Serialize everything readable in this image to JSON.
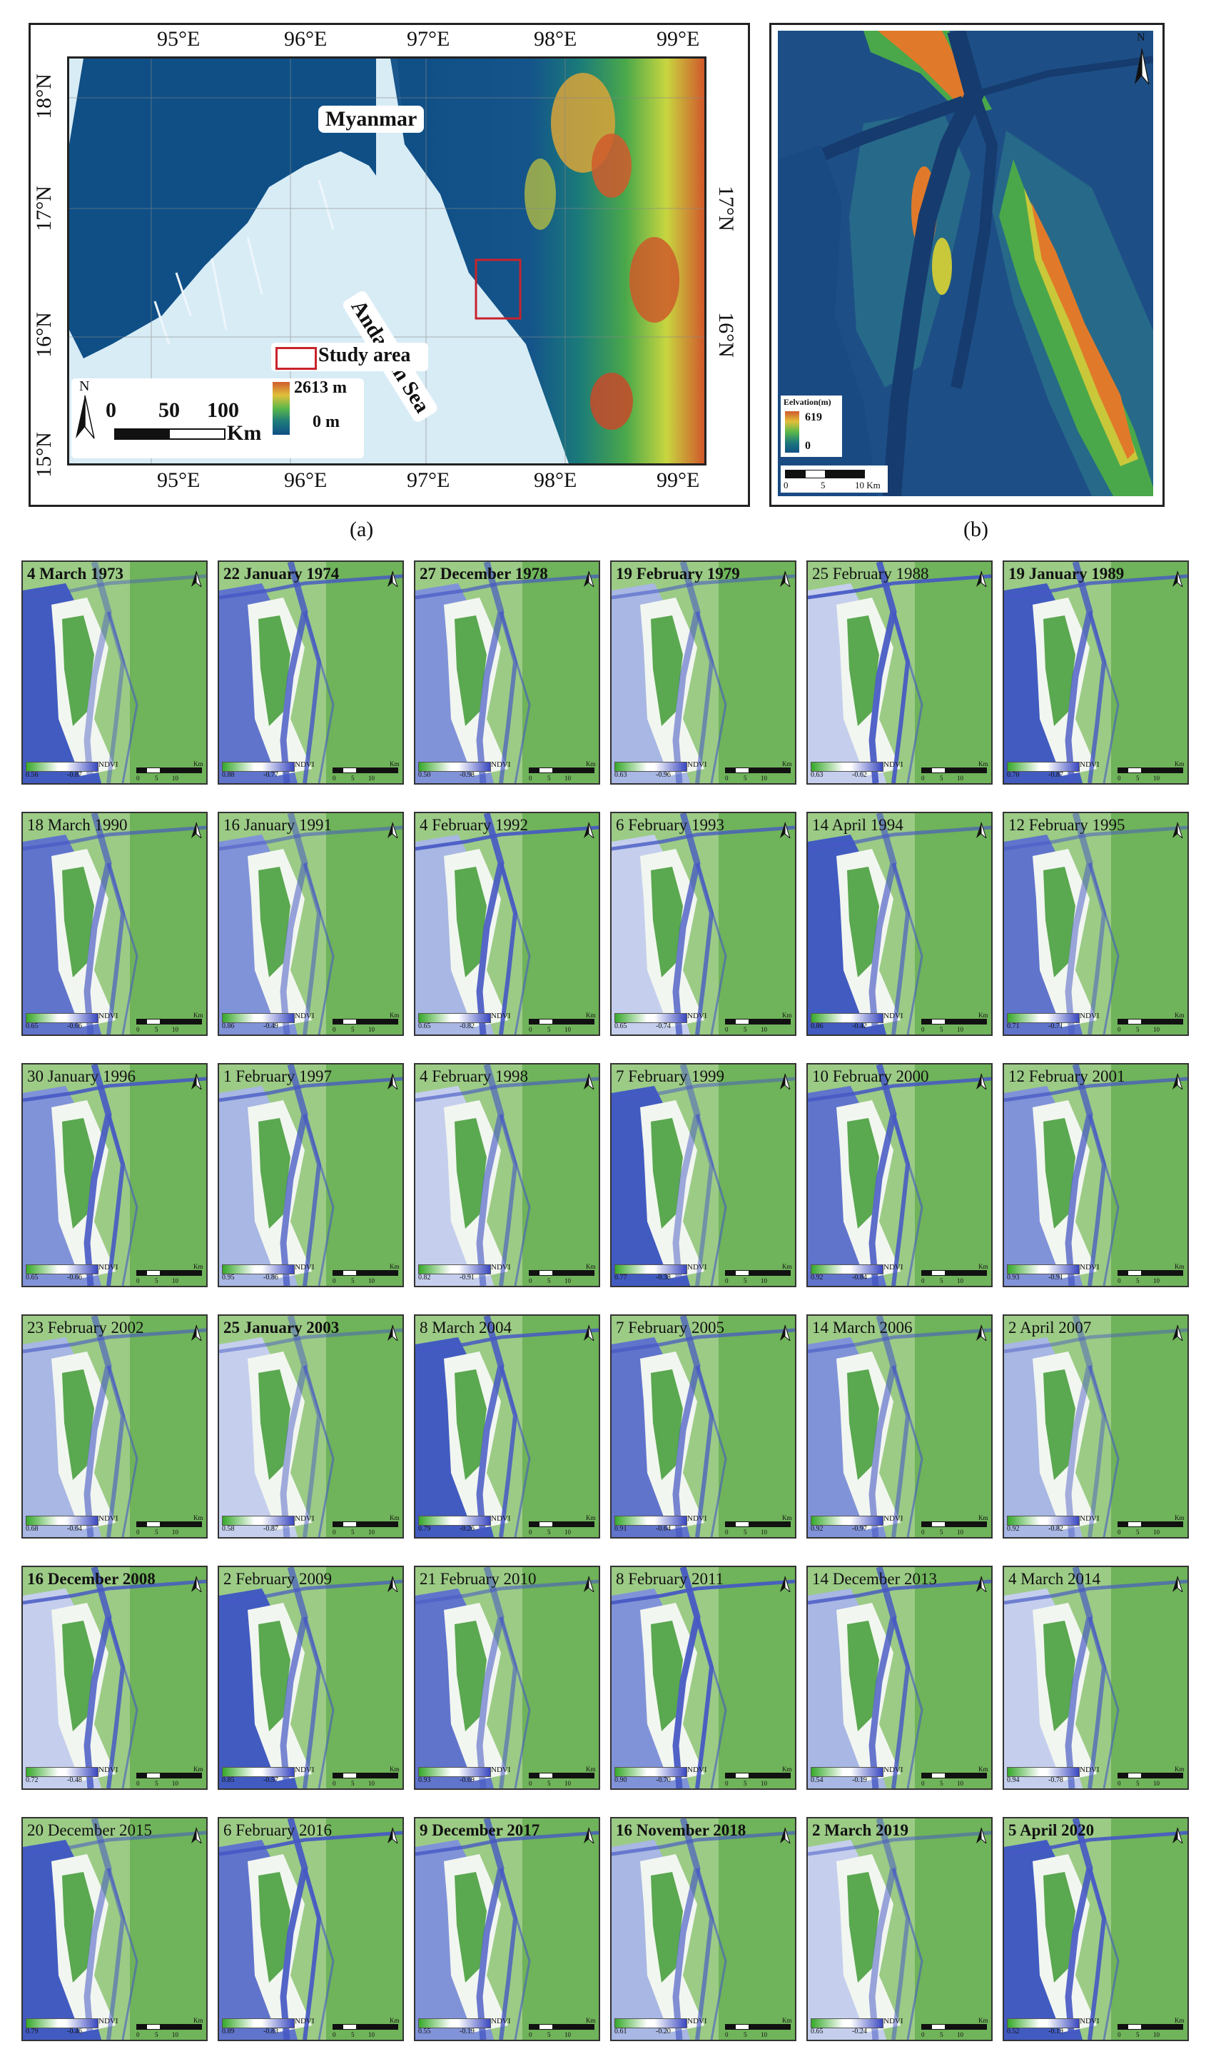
{
  "panel_a": {
    "top_ticks": [
      "95°E",
      "96°E",
      "97°E",
      "98°E",
      "99°E"
    ],
    "bottom_ticks": [
      "95°E",
      "96°E",
      "97°E",
      "98°E",
      "99°E"
    ],
    "left_ticks": [
      "18°N",
      "17°N",
      "16°N",
      "15°N"
    ],
    "right_ticks": [
      "17°N",
      "16°N"
    ],
    "country_label": "Myanmar",
    "sea_label": "Andaman Sea",
    "study_area_label": "Study area",
    "elev_max": "2613 m",
    "elev_min": "0 m",
    "scale_ticks": [
      "0",
      "50",
      "100"
    ],
    "scale_unit": "Km",
    "north": "N",
    "caption": "(a)"
  },
  "panel_b": {
    "legend_title": "Eelvation(m)",
    "elev_max": "619",
    "elev_min": "0",
    "scale_ticks": [
      "0",
      "5",
      "10 Km"
    ],
    "north": "N",
    "caption": "(b)"
  },
  "colors": {
    "ndvi_green": "#36a82a",
    "ndvi_blue": "#3a48c0",
    "water_light": "#d8ecf6",
    "lowland": "#1e5b8c"
  },
  "tiles": [
    {
      "date": "4 March 1973",
      "bold": true,
      "min": "0.56",
      "max": "-0.87"
    },
    {
      "date": "22 January 1974",
      "bold": true,
      "min": "0.88",
      "max": "-0.77"
    },
    {
      "date": "27 December 1978",
      "bold": true,
      "min": "0.50",
      "max": "-0.98"
    },
    {
      "date": "19 February 1979",
      "bold": true,
      "min": "0.63",
      "max": "-0.96"
    },
    {
      "date": "25 February 1988",
      "bold": false,
      "min": "0.63",
      "max": "-0.62"
    },
    {
      "date": "19 January 1989",
      "bold": true,
      "min": "0.70",
      "max": "-0.87"
    },
    {
      "date": "18 March 1990",
      "bold": false,
      "min": "0.65",
      "max": "-0.66"
    },
    {
      "date": "16 January 1991",
      "bold": false,
      "min": "0.86",
      "max": "-0.49"
    },
    {
      "date": "4 February 1992",
      "bold": false,
      "min": "0.65",
      "max": "-0.82"
    },
    {
      "date": "6 February 1993",
      "bold": false,
      "min": "0.65",
      "max": "-0.74"
    },
    {
      "date": "14 April 1994",
      "bold": false,
      "min": "0.86",
      "max": "-0.42"
    },
    {
      "date": "12 February 1995",
      "bold": false,
      "min": "0.71",
      "max": "-0.71"
    },
    {
      "date": "30 January 1996",
      "bold": false,
      "min": "0.65",
      "max": "-0.66"
    },
    {
      "date": "1 February 1997",
      "bold": false,
      "min": "0.95",
      "max": "-0.86"
    },
    {
      "date": "4 February 1998",
      "bold": false,
      "min": "0.82",
      "max": "-0.91"
    },
    {
      "date": "7 February 1999",
      "bold": false,
      "min": "0.77",
      "max": "-0.38"
    },
    {
      "date": "10 February 2000",
      "bold": false,
      "min": "0.92",
      "max": "-0.84"
    },
    {
      "date": "12 February 2001",
      "bold": false,
      "min": "0.93",
      "max": "-0.91"
    },
    {
      "date": "23 February 2002",
      "bold": false,
      "min": "0.68",
      "max": "-0.64"
    },
    {
      "date": "25 January 2003",
      "bold": true,
      "min": "0.58",
      "max": "-0.87"
    },
    {
      "date": "8 March 2004",
      "bold": false,
      "min": "0.79",
      "max": "-0.26"
    },
    {
      "date": "7 February 2005",
      "bold": false,
      "min": "0.91",
      "max": "-0.64"
    },
    {
      "date": "14 March 2006",
      "bold": false,
      "min": "0.92",
      "max": "-0.97"
    },
    {
      "date": "2 April 2007",
      "bold": false,
      "min": "0.92",
      "max": "-0.82"
    },
    {
      "date": "16 December 2008",
      "bold": true,
      "min": "0.72",
      "max": "-0.48"
    },
    {
      "date": "2 February 2009",
      "bold": false,
      "min": "0.85",
      "max": "-0.57"
    },
    {
      "date": "21 February 2010",
      "bold": false,
      "min": "0.93",
      "max": "-0.69"
    },
    {
      "date": "8 February 2011",
      "bold": false,
      "min": "0.90",
      "max": "-0.70"
    },
    {
      "date": "14 December 2013",
      "bold": false,
      "min": "0.54",
      "max": "-0.19"
    },
    {
      "date": "4 March 2014",
      "bold": false,
      "min": "0.94",
      "max": "-0.78"
    },
    {
      "date": "20 December 2015",
      "bold": false,
      "min": "0.79",
      "max": "-0.46"
    },
    {
      "date": "6 February 2016",
      "bold": false,
      "min": "0.89",
      "max": "-0.83"
    },
    {
      "date": "9 December 2017",
      "bold": true,
      "min": "0.55",
      "max": "-0.19"
    },
    {
      "date": "16 November 2018",
      "bold": true,
      "min": "0.61",
      "max": "-0.20"
    },
    {
      "date": "2 March 2019",
      "bold": true,
      "min": "0.65",
      "max": "-0.24"
    },
    {
      "date": "5 April 2020",
      "bold": true,
      "min": "0.52",
      "max": "-0.19"
    }
  ],
  "tile_legend": {
    "label": "NDVI",
    "scale_ticks": [
      "0",
      "5",
      "10"
    ],
    "unit": "Km",
    "north": "N"
  }
}
